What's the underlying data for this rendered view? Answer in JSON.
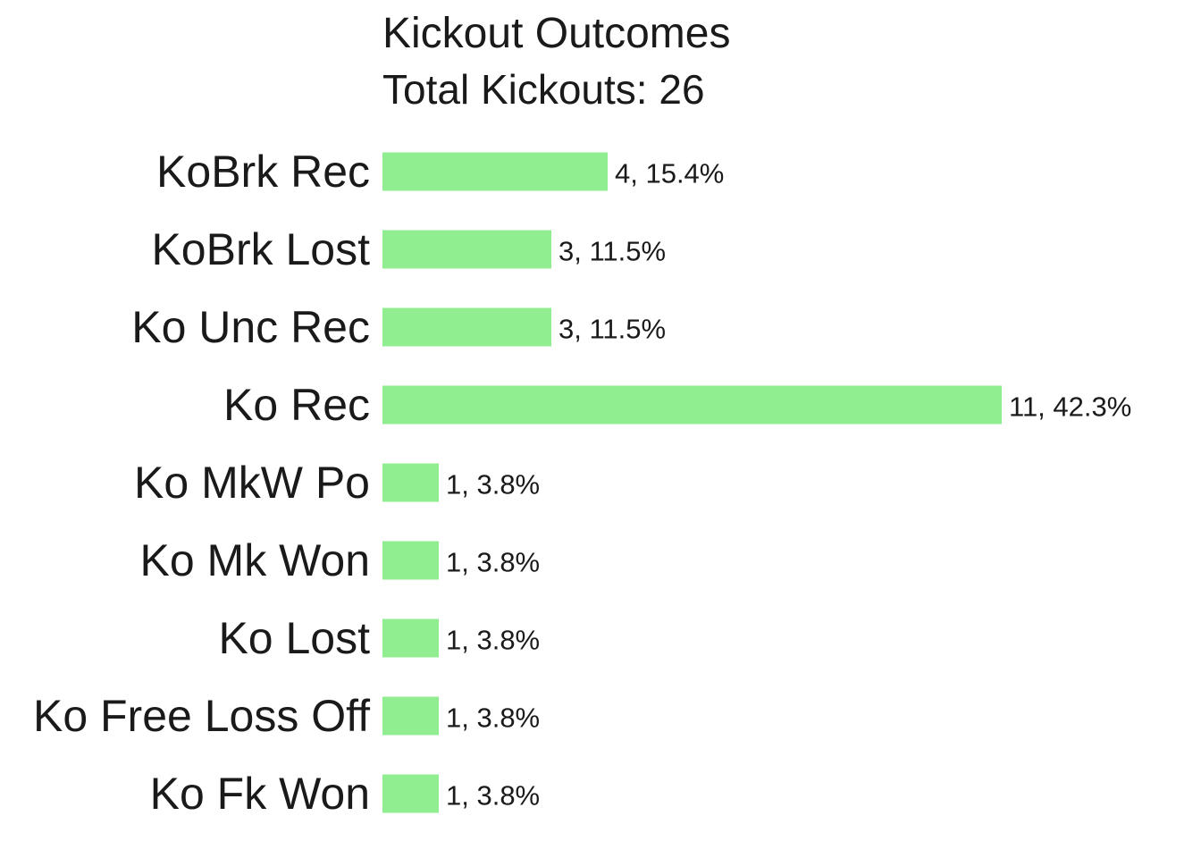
{
  "chart_data": {
    "type": "bar",
    "orientation": "horizontal",
    "title": "Kickout Outcomes",
    "subtitle": "Total Kickouts: 26",
    "xlabel": "",
    "ylabel": "",
    "grid": false,
    "legend": "none",
    "bar_color": "#90EE90",
    "xlim": [
      0,
      11
    ],
    "categories": [
      "KoBrk Rec",
      "KoBrk Lost",
      "Ko Unc Rec",
      "Ko Rec",
      "Ko MkW Po",
      "Ko Mk Won",
      "Ko Lost",
      "Ko Free Loss Off",
      "Ko Fk Won"
    ],
    "values": [
      4,
      3,
      3,
      11,
      1,
      1,
      1,
      1,
      1
    ],
    "data_labels": [
      "4, 15.4%",
      "3, 11.5%",
      "3, 11.5%",
      "11, 42.3%",
      "1, 3.8%",
      "1, 3.8%",
      "1, 3.8%",
      "1, 3.8%",
      "1, 3.8%"
    ]
  }
}
